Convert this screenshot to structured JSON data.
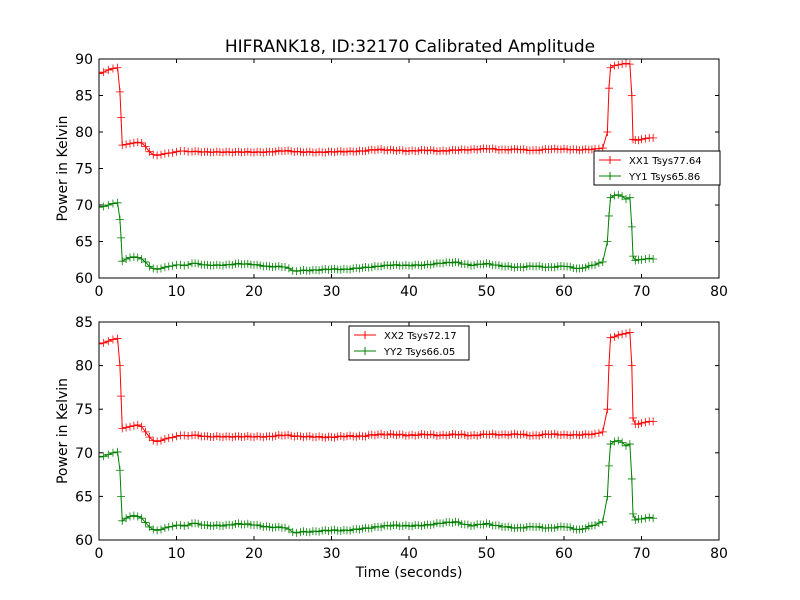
{
  "title": "HIFRANK18, ID:32170 Calibrated Amplitude",
  "colors": {
    "red": "#ff0000",
    "green": "#008000",
    "axis": "#000000"
  },
  "chart_data": [
    {
      "type": "line",
      "title": "HIFRANK18, ID:32170 Calibrated Amplitude",
      "xlabel": "",
      "ylabel": "Power in Kelvin",
      "xlim": [
        0,
        80
      ],
      "ylim": [
        60,
        90
      ],
      "xticks": [
        "0",
        "10",
        "20",
        "30",
        "40",
        "50",
        "60",
        "70",
        "80"
      ],
      "yticks": [
        "60",
        "65",
        "70",
        "75",
        "80",
        "85",
        "90"
      ],
      "grid": false,
      "legend_position": "center-right",
      "series": [
        {
          "name": "XX1 Tsys77.64",
          "color": "#ff0000",
          "x": [
            0,
            0.6,
            1.2,
            1.8,
            2.4,
            2.7,
            2.85,
            3.0,
            3.5,
            4,
            4.5,
            5,
            5.5,
            6,
            6.5,
            7,
            7.5,
            8,
            9,
            10,
            11,
            12,
            14,
            16,
            18,
            20,
            22,
            24,
            26,
            28,
            30,
            32,
            34,
            36,
            38,
            40,
            42,
            44,
            46,
            48,
            50,
            52,
            54,
            56,
            58,
            60,
            62,
            64,
            65,
            65.6,
            65.8,
            66.0,
            66.5,
            67,
            67.5,
            68,
            68.5,
            68.75,
            68.9,
            69.2,
            70,
            70.5,
            71,
            71.5
          ],
          "y": [
            88.0,
            88.2,
            88.5,
            88.7,
            88.8,
            85.5,
            82.0,
            78.2,
            78.3,
            78.4,
            78.5,
            78.6,
            78.5,
            78.0,
            77.3,
            76.9,
            76.8,
            76.9,
            77.1,
            77.3,
            77.4,
            77.3,
            77.3,
            77.2,
            77.3,
            77.2,
            77.3,
            77.4,
            77.3,
            77.2,
            77.3,
            77.3,
            77.4,
            77.6,
            77.5,
            77.4,
            77.5,
            77.4,
            77.5,
            77.6,
            77.7,
            77.6,
            77.6,
            77.5,
            77.6,
            77.7,
            77.5,
            77.7,
            77.8,
            80.0,
            86.0,
            88.8,
            89.1,
            89.2,
            89.3,
            89.4,
            89.3,
            85.0,
            79.0,
            78.9,
            79.0,
            79.1,
            79.2,
            79.2
          ]
        },
        {
          "name": "YY1 Tsys65.86",
          "color": "#008000",
          "x": [
            0,
            0.6,
            1.2,
            1.8,
            2.4,
            2.7,
            2.85,
            3.0,
            3.5,
            4,
            4.5,
            5,
            5.5,
            6,
            6.5,
            7,
            7.5,
            8,
            9,
            10,
            11,
            12,
            14,
            16,
            18,
            20,
            22,
            24,
            25,
            26,
            28,
            30,
            32,
            34,
            36,
            38,
            40,
            42,
            44,
            46,
            48,
            50,
            52,
            54,
            56,
            58,
            60,
            62,
            64,
            65,
            65.6,
            65.8,
            66.0,
            66.5,
            67,
            67.5,
            68,
            68.5,
            68.75,
            68.9,
            69.2,
            70,
            70.5,
            71,
            71.5
          ],
          "y": [
            69.7,
            69.8,
            70.0,
            70.2,
            70.3,
            68.0,
            65.5,
            62.3,
            62.6,
            62.8,
            62.9,
            62.8,
            62.6,
            62.2,
            61.6,
            61.3,
            61.2,
            61.3,
            61.6,
            61.8,
            61.7,
            62.0,
            61.8,
            61.7,
            62.0,
            61.8,
            61.6,
            61.5,
            61.0,
            61.0,
            61.1,
            61.2,
            61.2,
            61.4,
            61.6,
            61.8,
            61.7,
            61.8,
            62.0,
            62.2,
            61.7,
            62.0,
            61.6,
            61.5,
            61.6,
            61.5,
            61.6,
            61.3,
            61.8,
            62.2,
            65.0,
            68.5,
            71.0,
            71.3,
            71.4,
            71.2,
            70.8,
            71.0,
            67.0,
            63.0,
            62.4,
            62.5,
            62.6,
            62.7,
            62.6
          ]
        }
      ]
    },
    {
      "type": "line",
      "title": "",
      "xlabel": "Time (seconds)",
      "ylabel": "Power in Kelvin",
      "xlim": [
        0,
        80
      ],
      "ylim": [
        60,
        85
      ],
      "xticks": [
        "0",
        "10",
        "20",
        "30",
        "40",
        "50",
        "60",
        "70",
        "80"
      ],
      "yticks": [
        "60",
        "65",
        "70",
        "75",
        "80",
        "85"
      ],
      "grid": false,
      "legend_position": "upper-center",
      "series": [
        {
          "name": "XX2 Tsys72.17",
          "color": "#ff0000",
          "x": [
            0,
            0.6,
            1.2,
            1.8,
            2.4,
            2.7,
            2.85,
            3.0,
            3.5,
            4,
            4.5,
            5,
            5.5,
            6,
            6.5,
            7,
            7.5,
            8,
            9,
            10,
            11,
            12,
            14,
            16,
            18,
            20,
            22,
            24,
            26,
            28,
            30,
            32,
            34,
            36,
            38,
            40,
            42,
            44,
            46,
            48,
            50,
            52,
            54,
            56,
            58,
            60,
            62,
            64,
            65,
            65.6,
            65.8,
            66.0,
            66.5,
            67,
            67.5,
            68,
            68.5,
            68.75,
            68.9,
            69.2,
            70,
            70.5,
            71,
            71.5
          ],
          "y": [
            82.5,
            82.6,
            82.8,
            83.0,
            83.1,
            80.0,
            76.5,
            72.8,
            72.9,
            73.0,
            73.1,
            73.2,
            73.0,
            72.4,
            71.8,
            71.4,
            71.3,
            71.4,
            71.7,
            71.9,
            72.0,
            72.0,
            71.9,
            71.8,
            71.9,
            71.8,
            71.9,
            72.0,
            71.9,
            71.8,
            71.8,
            71.9,
            71.9,
            72.1,
            72.1,
            72.0,
            72.1,
            72.0,
            72.1,
            72.0,
            72.1,
            72.1,
            72.1,
            72.0,
            72.1,
            72.1,
            72.0,
            72.2,
            72.4,
            75.0,
            80.0,
            83.2,
            83.3,
            83.5,
            83.6,
            83.7,
            83.8,
            80.0,
            74.0,
            73.3,
            73.4,
            73.5,
            73.6,
            73.6
          ]
        },
        {
          "name": "YY2 Tsys66.05",
          "color": "#008000",
          "x": [
            0,
            0.6,
            1.2,
            1.8,
            2.4,
            2.7,
            2.85,
            3.0,
            3.5,
            4,
            4.5,
            5,
            5.5,
            6,
            6.5,
            7,
            7.5,
            8,
            9,
            10,
            11,
            12,
            14,
            16,
            18,
            20,
            22,
            24,
            25,
            26,
            28,
            30,
            32,
            34,
            36,
            38,
            40,
            42,
            44,
            46,
            48,
            50,
            52,
            54,
            56,
            58,
            60,
            62,
            64,
            65,
            65.6,
            65.8,
            66.0,
            66.5,
            67,
            67.5,
            68,
            68.5,
            68.75,
            68.9,
            69.2,
            70,
            70.5,
            71,
            71.5
          ],
          "y": [
            69.5,
            69.6,
            69.8,
            70.0,
            70.1,
            68.0,
            65.0,
            62.2,
            62.5,
            62.7,
            62.8,
            62.7,
            62.5,
            62.0,
            61.5,
            61.2,
            61.1,
            61.2,
            61.5,
            61.7,
            61.6,
            61.9,
            61.7,
            61.6,
            61.9,
            61.7,
            61.5,
            61.4,
            60.9,
            60.9,
            61.0,
            61.1,
            61.1,
            61.3,
            61.5,
            61.7,
            61.6,
            61.7,
            61.9,
            62.1,
            61.6,
            61.9,
            61.5,
            61.4,
            61.5,
            61.4,
            61.5,
            61.2,
            61.7,
            62.1,
            65.0,
            68.5,
            71.0,
            71.3,
            71.4,
            71.2,
            70.8,
            71.0,
            67.0,
            63.0,
            62.3,
            62.4,
            62.5,
            62.6,
            62.5
          ]
        }
      ]
    }
  ]
}
